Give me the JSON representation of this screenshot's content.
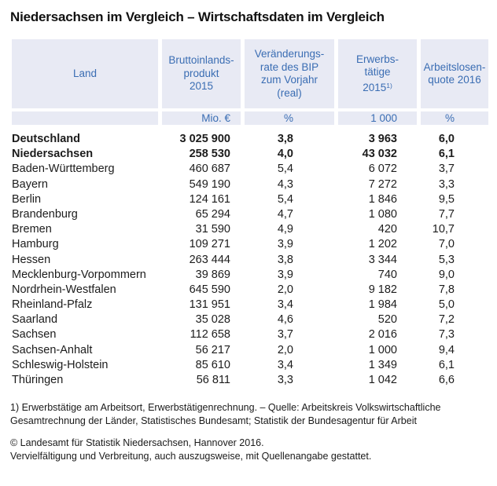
{
  "title": "Niedersachsen im Vergleich – Wirtschaftsdaten im Vergleich",
  "colors": {
    "header_background": "#e8eaf4",
    "header_text": "#3a6db3",
    "body_text": "#1c1c1c",
    "page_background": "#ffffff"
  },
  "table": {
    "columns": [
      {
        "key": "land",
        "header_lines": [
          "Land"
        ],
        "unit": ""
      },
      {
        "key": "bip",
        "header_lines": [
          "Bruttoinlands-",
          "produkt",
          "2015"
        ],
        "unit": "Mio. €"
      },
      {
        "key": "rate",
        "header_lines": [
          "Veränderungs-",
          "rate des BIP",
          "zum Vorjahr",
          "(real)"
        ],
        "unit": "%"
      },
      {
        "key": "erw",
        "header_lines": [
          "Erwerbs-",
          "tätige",
          "2015"
        ],
        "header_sup": "1)",
        "unit": "1 000"
      },
      {
        "key": "alq",
        "header_lines": [
          "Arbeitslosen-",
          "quote 2016"
        ],
        "unit": "%"
      }
    ],
    "rows": [
      {
        "land": "Deutschland",
        "bip": "3 025 900",
        "rate": "3,8",
        "erw": "3 963",
        "alq": "6,0",
        "bold": true
      },
      {
        "land": "Niedersachsen",
        "bip": "258 530",
        "rate": "4,0",
        "erw": "43 032",
        "alq": "6,1",
        "bold": true
      },
      {
        "land": "Baden-Württemberg",
        "bip": "460 687",
        "rate": "5,4",
        "erw": "6 072",
        "alq": "3,7",
        "bold": false
      },
      {
        "land": "Bayern",
        "bip": "549 190",
        "rate": "4,3",
        "erw": "7 272",
        "alq": "3,3",
        "bold": false
      },
      {
        "land": "Berlin",
        "bip": "124 161",
        "rate": "5,4",
        "erw": "1 846",
        "alq": "9,5",
        "bold": false
      },
      {
        "land": "Brandenburg",
        "bip": "65 294",
        "rate": "4,7",
        "erw": "1 080",
        "alq": "7,7",
        "bold": false
      },
      {
        "land": "Bremen",
        "bip": "31 590",
        "rate": "4,9",
        "erw": "420",
        "alq": "10,7",
        "bold": false
      },
      {
        "land": "Hamburg",
        "bip": "109 271",
        "rate": "3,9",
        "erw": "1 202",
        "alq": "7,0",
        "bold": false
      },
      {
        "land": "Hessen",
        "bip": "263 444",
        "rate": "3,8",
        "erw": "3 344",
        "alq": "5,3",
        "bold": false
      },
      {
        "land": "Mecklenburg-Vorpommern",
        "bip": "39 869",
        "rate": "3,9",
        "erw": "740",
        "alq": "9,0",
        "bold": false
      },
      {
        "land": "Nordrhein-Westfalen",
        "bip": "645 590",
        "rate": "2,0",
        "erw": "9 182",
        "alq": "7,8",
        "bold": false
      },
      {
        "land": "Rheinland-Pfalz",
        "bip": "131 951",
        "rate": "3,4",
        "erw": "1 984",
        "alq": "5,0",
        "bold": false
      },
      {
        "land": "Saarland",
        "bip": "35 028",
        "rate": "4,6",
        "erw": "520",
        "alq": "7,2",
        "bold": false
      },
      {
        "land": "Sachsen",
        "bip": "112 658",
        "rate": "3,7",
        "erw": "2 016",
        "alq": "7,3",
        "bold": false
      },
      {
        "land": "Sachsen-Anhalt",
        "bip": "56 217",
        "rate": "2,0",
        "erw": "1 000",
        "alq": "9,4",
        "bold": false
      },
      {
        "land": "Schleswig-Holstein",
        "bip": "85 610",
        "rate": "3,4",
        "erw": "1 349",
        "alq": "6,1",
        "bold": false
      },
      {
        "land": "Thüringen",
        "bip": "56 811",
        "rate": "3,3",
        "erw": "1 042",
        "alq": "6,6",
        "bold": false
      }
    ]
  },
  "chart_data": {
    "type": "table",
    "title": "Niedersachsen im Vergleich – Wirtschaftsdaten im Vergleich",
    "columns": [
      "Land",
      "Bruttoinlandsprodukt 2015 (Mio. €)",
      "Veränderungsrate des BIP zum Vorjahr (real) (%)",
      "Erwerbstätige 2015 1) (1 000)",
      "Arbeitslosenquote 2016 (%)"
    ],
    "rows": [
      [
        "Deutschland",
        3025900,
        3.8,
        3963,
        6.0
      ],
      [
        "Niedersachsen",
        258530,
        4.0,
        43032,
        6.1
      ],
      [
        "Baden-Württemberg",
        460687,
        5.4,
        6072,
        3.7
      ],
      [
        "Bayern",
        549190,
        4.3,
        7272,
        3.3
      ],
      [
        "Berlin",
        124161,
        5.4,
        1846,
        9.5
      ],
      [
        "Brandenburg",
        65294,
        4.7,
        1080,
        7.7
      ],
      [
        "Bremen",
        31590,
        4.9,
        420,
        10.7
      ],
      [
        "Hamburg",
        109271,
        3.9,
        1202,
        7.0
      ],
      [
        "Hessen",
        263444,
        3.8,
        3344,
        5.3
      ],
      [
        "Mecklenburg-Vorpommern",
        39869,
        3.9,
        740,
        9.0
      ],
      [
        "Nordrhein-Westfalen",
        645590,
        2.0,
        9182,
        7.8
      ],
      [
        "Rheinland-Pfalz",
        131951,
        3.4,
        1984,
        5.0
      ],
      [
        "Saarland",
        35028,
        4.6,
        520,
        7.2
      ],
      [
        "Sachsen",
        112658,
        3.7,
        2016,
        7.3
      ],
      [
        "Sachsen-Anhalt",
        56217,
        2.0,
        1000,
        9.4
      ],
      [
        "Schleswig-Holstein",
        85610,
        3.4,
        1349,
        6.1
      ],
      [
        "Thüringen",
        56811,
        3.3,
        1042,
        6.6
      ]
    ]
  },
  "footnotes": {
    "source_lines": [
      "1) Erwerbstätige am Arbeitsort, Erwerbstätigenrechnung. – Quelle: Arbeitskreis Volkswirtschaftliche",
      "Gesamtrechnung der Länder, Statistisches Bundesamt; Statistik der Bundesagentur für Arbeit"
    ],
    "copyright": "© Landesamt für Statistik Niedersachsen, Hannover 2016.",
    "license": "Vervielfältigung und Verbreitung, auch auszugsweise, mit Quellenangabe gestattet."
  }
}
